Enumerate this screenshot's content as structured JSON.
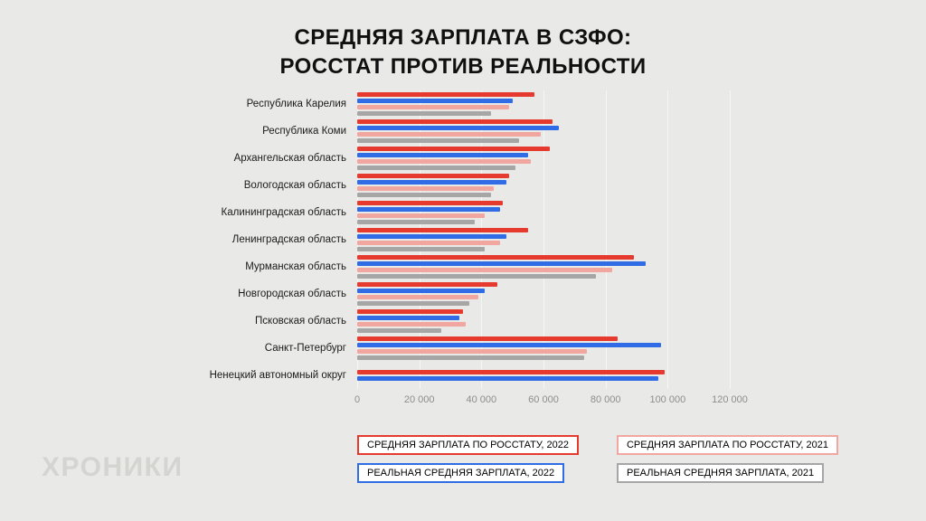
{
  "title": {
    "line1": "СРЕДНЯЯ ЗАРПЛАТА В СЗФО:",
    "line2": "РОССТАТ ПРОТИВ РЕАЛЬНОСТИ"
  },
  "watermark": "ХРОНИКИ",
  "colors": {
    "background": "#e9e9e7",
    "gridline": "#f6f6f3",
    "rosstat_2022": "#e63a2e",
    "real_2022": "#2f6ce6",
    "rosstat_2021": "#f2a6a0",
    "real_2021": "#a6a6a6"
  },
  "chart_data": {
    "type": "bar",
    "orientation": "horizontal",
    "title": "СРЕДНЯЯ ЗАРПЛАТА В СЗФО: РОССТАТ ПРОТИВ РЕАЛЬНОСТИ",
    "xlabel": "",
    "ylabel": "",
    "xlim": [
      0,
      120000
    ],
    "x_ticks": [
      "0",
      "20 000",
      "40 000",
      "60 000",
      "80 000",
      "100 000",
      "120 000"
    ],
    "grid": true,
    "legend_position": "bottom",
    "categories": [
      "Республика Карелия",
      "Республика Коми",
      "Архангельская область",
      "Вологодская область",
      "Калининградская область",
      "Ленинградская область",
      "Мурманская область",
      "Новгородская область",
      "Псковская область",
      "Санкт-Петербург",
      "Ненецкий автономный округ"
    ],
    "series": [
      {
        "key": "rosstat-2022",
        "name": "СРЕДНЯЯ ЗАРПЛАТА ПО РОССТАТУ, 2022",
        "color": "#e63a2e",
        "values": [
          57000,
          63000,
          62000,
          49000,
          47000,
          55000,
          89000,
          45000,
          34000,
          84000,
          99000
        ]
      },
      {
        "key": "real-2022",
        "name": "РЕАЛЬНАЯ СРЕДНЯЯ ЗАРПЛАТА, 2022",
        "color": "#2f6ce6",
        "values": [
          50000,
          65000,
          55000,
          48000,
          46000,
          48000,
          93000,
          41000,
          33000,
          98000,
          97000
        ]
      },
      {
        "key": "rosstat-2021",
        "name": "СРЕДНЯЯ ЗАРПЛАТА ПО РОССТАТУ, 2021",
        "color": "#f2a6a0",
        "values": [
          49000,
          59000,
          56000,
          44000,
          41000,
          46000,
          82000,
          39000,
          35000,
          74000,
          null
        ]
      },
      {
        "key": "real-2021",
        "name": "РЕАЛЬНАЯ СРЕДНЯЯ ЗАРПЛАТА, 2021",
        "color": "#a6a6a6",
        "values": [
          43000,
          52000,
          51000,
          43000,
          38000,
          41000,
          77000,
          36000,
          27000,
          73000,
          null
        ]
      }
    ],
    "legend_order": [
      0,
      2,
      1,
      3
    ]
  }
}
